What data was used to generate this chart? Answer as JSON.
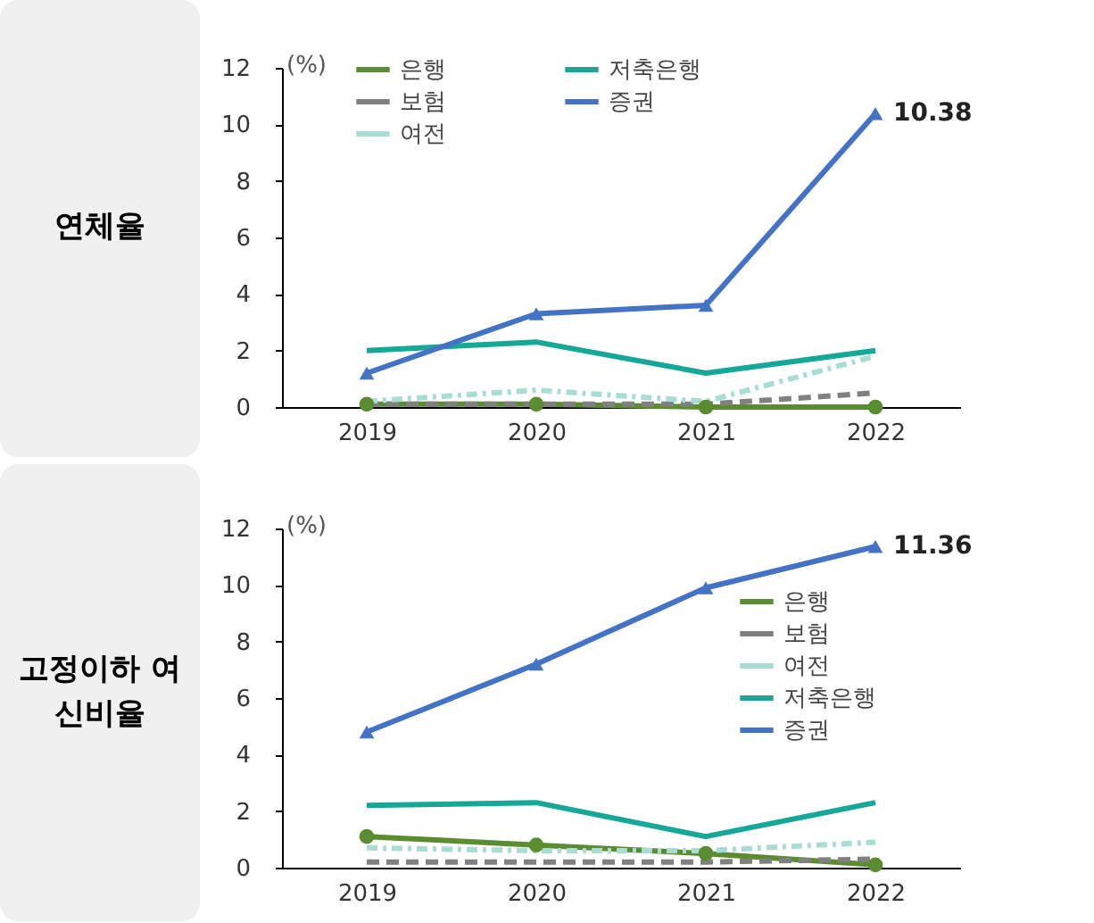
{
  "chart_data": [
    {
      "type": "line",
      "title": "연체율",
      "ylabel": "(%)",
      "categories": [
        "2019",
        "2020",
        "2021",
        "2022"
      ],
      "ylim": [
        0,
        12
      ],
      "yticks": [
        0,
        2,
        4,
        6,
        8,
        10,
        12
      ],
      "legend": "top",
      "series": [
        {
          "name": "은행",
          "color": "#5b8c32",
          "values": [
            0.1,
            0.1,
            0.0,
            0.0
          ],
          "marker": "circle",
          "line_style": "solid"
        },
        {
          "name": "보험",
          "color": "#808080",
          "values": [
            0.1,
            0.1,
            0.1,
            0.5
          ],
          "marker": "none",
          "line_style": "dashed"
        },
        {
          "name": "여전",
          "color": "#a8dcd4",
          "values": [
            0.2,
            0.6,
            0.2,
            1.8
          ],
          "marker": "none",
          "line_style": "dashdot"
        },
        {
          "name": "저축은행",
          "color": "#16a896",
          "values": [
            2.0,
            2.3,
            1.2,
            2.0
          ],
          "marker": "none",
          "line_style": "solid"
        },
        {
          "name": "증권",
          "color": "#4472c4",
          "values": [
            1.2,
            3.3,
            3.6,
            10.38
          ],
          "marker": "triangle",
          "line_style": "solid",
          "value_labels": [
            null,
            null,
            null,
            "10.38"
          ]
        }
      ]
    },
    {
      "type": "line",
      "title": "고정이하 여신비율",
      "ylabel": "(%)",
      "categories": [
        "2019",
        "2020",
        "2021",
        "2022"
      ],
      "ylim": [
        0,
        12
      ],
      "yticks": [
        0,
        2,
        4,
        6,
        8,
        10,
        12
      ],
      "legend": "right",
      "series": [
        {
          "name": "은행",
          "color": "#5b8c32",
          "values": [
            1.1,
            0.8,
            0.5,
            0.1
          ],
          "marker": "circle",
          "line_style": "solid"
        },
        {
          "name": "보험",
          "color": "#808080",
          "values": [
            0.2,
            0.2,
            0.2,
            0.3
          ],
          "marker": "none",
          "line_style": "dashed"
        },
        {
          "name": "여전",
          "color": "#a8dcd4",
          "values": [
            0.7,
            0.6,
            0.6,
            0.9
          ],
          "marker": "none",
          "line_style": "dashdot"
        },
        {
          "name": "저축은행",
          "color": "#16a896",
          "values": [
            2.2,
            2.3,
            1.1,
            2.3
          ],
          "marker": "none",
          "line_style": "solid"
        },
        {
          "name": "증권",
          "color": "#4472c4",
          "values": [
            4.8,
            7.2,
            9.9,
            11.36
          ],
          "marker": "triangle",
          "line_style": "solid",
          "value_labels": [
            null,
            null,
            null,
            "11.36"
          ]
        }
      ]
    }
  ]
}
